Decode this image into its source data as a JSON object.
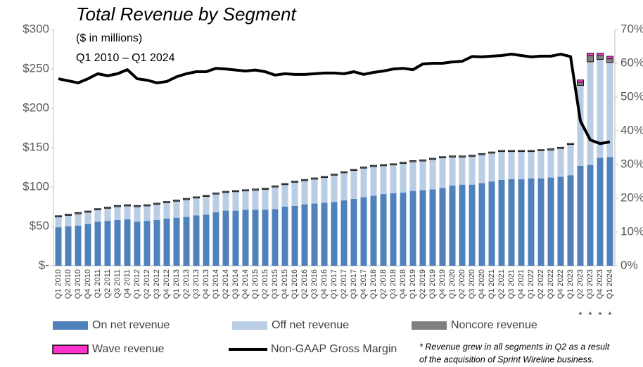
{
  "chart_data": {
    "type": "bar",
    "stacked": true,
    "title": "Total Revenue by Segment",
    "subtitle": [
      "($ in millions)",
      "Q1 2010 – Q1 2024"
    ],
    "categories": [
      "Q1 2010",
      "Q2 2010",
      "Q3 2010",
      "Q4 2010",
      "Q1 2011",
      "Q2 2011",
      "Q3 2011",
      "Q4 2011",
      "Q1 2012",
      "Q2 2012",
      "Q3 2012",
      "Q4 2012",
      "Q1 2013",
      "Q2 2013",
      "Q3 2013",
      "Q4 2013",
      "Q1 2014",
      "Q2 2014",
      "Q3 2014",
      "Q4 2014",
      "Q1 2015",
      "Q2 2015",
      "Q3 2015",
      "Q4 2015",
      "Q1 2016",
      "Q2 2016",
      "Q3 2016",
      "Q4 2016",
      "Q1 2017",
      "Q2 2017",
      "Q3 2017",
      "Q4 2017",
      "Q1 2018",
      "Q2 2018",
      "Q3 2018",
      "Q4 2018",
      "Q1 2019",
      "Q2 2019",
      "Q3 2019",
      "Q4 2019",
      "Q1 2020",
      "Q2 2020",
      "Q3 2020",
      "Q4 2020",
      "Q1 2021",
      "Q2 2021",
      "Q3 2021",
      "Q4 2021",
      "Q1 2022",
      "Q2 2022",
      "Q3 2022",
      "Q4 2022",
      "Q1 2023",
      "Q2 2023",
      "Q3 2023",
      "Q4 2023",
      "Q1 2024"
    ],
    "series": [
      {
        "name": "On net revenue",
        "type": "bar",
        "color": "#4f81bd",
        "values": [
          49,
          50,
          51,
          53,
          56,
          57,
          58,
          59,
          56,
          57,
          58,
          60,
          61,
          62,
          64,
          65,
          68,
          70,
          70,
          71,
          71,
          71,
          72,
          75,
          76,
          78,
          79,
          80,
          81,
          83,
          85,
          87,
          89,
          91,
          92,
          93,
          95,
          96,
          97,
          99,
          102,
          103,
          103,
          105,
          107,
          109,
          110,
          110,
          111,
          111,
          112,
          113,
          115,
          127,
          128,
          137,
          138
        ]
      },
      {
        "name": "Off net revenue",
        "type": "bar",
        "color": "#b9cde5",
        "values": [
          13,
          14,
          15,
          15,
          15,
          16,
          17,
          17,
          19,
          19,
          20,
          20,
          21,
          22,
          22,
          23,
          23,
          23,
          24,
          24,
          25,
          26,
          28,
          28,
          30,
          30,
          31,
          32,
          34,
          35,
          36,
          37,
          37,
          36,
          36,
          37,
          37,
          37,
          38,
          38,
          36,
          35,
          36,
          36,
          36,
          36,
          35,
          35,
          34,
          35,
          35,
          36,
          39,
          102,
          131,
          125,
          120
        ]
      },
      {
        "name": "Noncore revenue",
        "type": "bar",
        "color": "#7f7f7f",
        "values": [
          1.5,
          1.5,
          1.5,
          1.5,
          1.5,
          1.5,
          1.5,
          1.5,
          1.5,
          1.5,
          1.5,
          1.5,
          1.5,
          1.5,
          1.5,
          1.5,
          1.5,
          1.5,
          1.5,
          1.5,
          1.5,
          1.5,
          1.5,
          1.5,
          1.5,
          1.5,
          1.5,
          1.5,
          1.5,
          1.5,
          1.5,
          1.5,
          1.5,
          1.5,
          1.5,
          1.5,
          1.5,
          1.5,
          1.5,
          1.5,
          1.5,
          1.5,
          1.5,
          1.5,
          1.5,
          1.5,
          1.5,
          1.5,
          1.5,
          1.5,
          1.5,
          1.5,
          1.5,
          4,
          8,
          5,
          5
        ]
      },
      {
        "name": "Wave revenue",
        "type": "bar",
        "color": "#ff33cc",
        "values": [
          0,
          0,
          0,
          0,
          0,
          0,
          0,
          0,
          0,
          0,
          0,
          0,
          0,
          0,
          0,
          0,
          0,
          0,
          0,
          0,
          0,
          0,
          0,
          0,
          0,
          0,
          0,
          0,
          0,
          0,
          0,
          0,
          0,
          0,
          0,
          0,
          0,
          0,
          0,
          0,
          0,
          0,
          0,
          0,
          0,
          0,
          0,
          0,
          0,
          0,
          0,
          0,
          0,
          3,
          3,
          3,
          3
        ]
      },
      {
        "name": "Non-GAAP Gross Margin",
        "type": "line",
        "axis": "y2",
        "color": "#000000",
        "values": [
          55.4,
          54.8,
          54.2,
          55.4,
          56.9,
          56.3,
          56.9,
          58.1,
          55.4,
          55,
          54.2,
          54.6,
          56,
          56.9,
          57.5,
          57.5,
          58.5,
          58.3,
          58,
          57.7,
          58,
          57.5,
          56.5,
          56.9,
          56.7,
          56.7,
          56.9,
          57.1,
          57.1,
          56.9,
          57.5,
          56.7,
          57.3,
          57.7,
          58.3,
          58.5,
          58.1,
          59.8,
          60,
          60,
          60.4,
          60.6,
          62,
          61.9,
          62.1,
          62.3,
          62.7,
          62.3,
          61.9,
          62.1,
          62.1,
          62.7,
          62,
          42.9,
          37.3,
          36.2,
          36.7
        ]
      }
    ],
    "ylim": [
      0,
      300
    ],
    "yticks": [
      {
        "value": 0,
        "label": "$-"
      },
      {
        "value": 50,
        "label": "$50"
      },
      {
        "value": 100,
        "label": "$100"
      },
      {
        "value": 150,
        "label": "$150"
      },
      {
        "value": 200,
        "label": "$200"
      },
      {
        "value": 250,
        "label": "$250"
      },
      {
        "value": 300,
        "label": "$300"
      }
    ],
    "y2lim": [
      0,
      70
    ],
    "y2ticks": [
      {
        "value": 0,
        "label": "0%"
      },
      {
        "value": 10,
        "label": "10%"
      },
      {
        "value": 20,
        "label": "20%"
      },
      {
        "value": 30,
        "label": "30%"
      },
      {
        "value": 40,
        "label": "40%"
      },
      {
        "value": 50,
        "label": "50%"
      },
      {
        "value": 60,
        "label": "60%"
      },
      {
        "value": 70,
        "label": "70%"
      }
    ],
    "annotations": [
      {
        "text": "*",
        "category": "Q2 2023"
      },
      {
        "text": "*",
        "category": "Q3 2023"
      },
      {
        "text": "*",
        "category": "Q4 2023"
      },
      {
        "text": "*",
        "category": "Q1 2024"
      }
    ],
    "footnote": [
      "*  Revenue grew in all segments in Q2 as a result",
      "of  the acquisition of Sprint Wireline business."
    ],
    "legend": "bottom"
  }
}
